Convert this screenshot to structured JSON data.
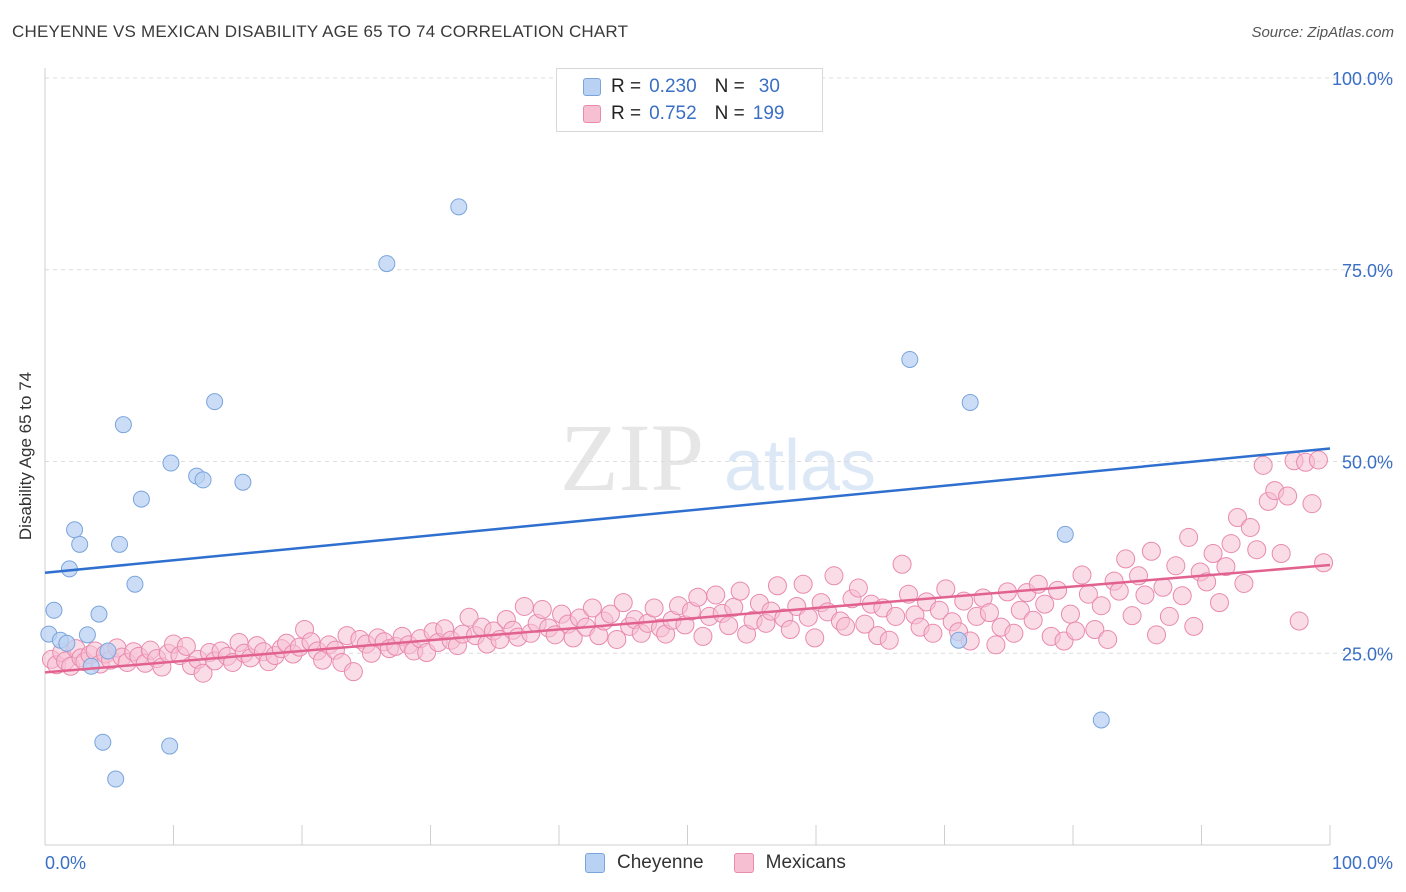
{
  "header": {
    "title": "CHEYENNE VS MEXICAN DISABILITY AGE 65 TO 74 CORRELATION CHART",
    "source": "Source: ZipAtlas.com"
  },
  "watermark": {
    "zip": "ZIP",
    "atlas": "atlas"
  },
  "legend_top": {
    "rows": [
      {
        "r_label": "R =",
        "r_value": "0.230",
        "n_label": "N =",
        "n_value": "30"
      },
      {
        "r_label": "R =",
        "r_value": "0.752",
        "n_label": "N =",
        "n_value": "199"
      }
    ]
  },
  "legend_bottom": {
    "items": [
      "Cheyenne",
      "Mexicans"
    ]
  },
  "colors": {
    "cheyenne_fill": "#b9d2f3",
    "cheyenne_stroke": "#7aa4dc",
    "cheyenne_line": "#2f6fcf",
    "mexicans_fill": "#f6bfd2",
    "mexicans_stroke": "#e98aae",
    "mexicans_line": "#e2628f",
    "tick_label": "#3a6fc4",
    "grid": "#dcdcdc"
  },
  "chart_data": {
    "type": "scatter",
    "title": "CHEYENNE VS MEXICAN DISABILITY AGE 65 TO 74 CORRELATION CHART",
    "xlabel": "",
    "ylabel": "Disability Age 65 to 74",
    "xlim": [
      0,
      100
    ],
    "ylim": [
      0,
      100
    ],
    "x_tick_labels": [
      "0.0%",
      "100.0%"
    ],
    "y_tick_labels": [
      "25.0%",
      "50.0%",
      "75.0%",
      "100.0%"
    ],
    "y_ticks": [
      25,
      50,
      75,
      100
    ],
    "grid": true,
    "legend_position": "top-center",
    "series": [
      {
        "name": "Cheyenne",
        "r": 0.23,
        "n": 30,
        "trend": {
          "x": [
            0,
            100
          ],
          "y": [
            35.5,
            51.7
          ]
        },
        "points": [
          [
            0.3,
            27.5
          ],
          [
            0.7,
            30.6
          ],
          [
            1.2,
            26.7
          ],
          [
            1.7,
            26.3
          ],
          [
            1.9,
            36.0
          ],
          [
            2.3,
            41.1
          ],
          [
            2.7,
            39.2
          ],
          [
            3.3,
            27.4
          ],
          [
            3.6,
            23.3
          ],
          [
            4.2,
            30.1
          ],
          [
            4.5,
            13.4
          ],
          [
            5.5,
            8.6
          ],
          [
            5.8,
            39.2
          ],
          [
            6.1,
            54.8
          ],
          [
            7.0,
            34.0
          ],
          [
            7.5,
            45.1
          ],
          [
            9.7,
            12.9
          ],
          [
            9.8,
            49.8
          ],
          [
            11.8,
            48.1
          ],
          [
            12.3,
            47.6
          ],
          [
            13.2,
            57.8
          ],
          [
            15.4,
            47.3
          ],
          [
            26.6,
            75.8
          ],
          [
            32.2,
            83.2
          ],
          [
            67.3,
            63.3
          ],
          [
            71.1,
            26.7
          ],
          [
            72.0,
            57.7
          ],
          [
            79.4,
            40.5
          ],
          [
            82.2,
            16.3
          ],
          [
            4.9,
            25.3
          ]
        ]
      },
      {
        "name": "Mexicans",
        "r": 0.752,
        "n": 199,
        "trend": {
          "x": [
            0,
            100
          ],
          "y": [
            22.5,
            36.5
          ]
        },
        "points": [
          [
            0.5,
            24.2
          ],
          [
            0.9,
            23.5
          ],
          [
            1.3,
            25.1
          ],
          [
            1.6,
            24.0
          ],
          [
            2.0,
            23.3
          ],
          [
            2.4,
            25.6
          ],
          [
            2.8,
            24.4
          ],
          [
            3.1,
            23.9
          ],
          [
            3.5,
            24.8
          ],
          [
            3.9,
            25.3
          ],
          [
            4.3,
            23.6
          ],
          [
            4.7,
            24.9
          ],
          [
            5.1,
            24.1
          ],
          [
            5.6,
            25.7
          ],
          [
            6.0,
            24.5
          ],
          [
            6.4,
            23.8
          ],
          [
            6.9,
            25.2
          ],
          [
            7.3,
            24.6
          ],
          [
            7.8,
            23.7
          ],
          [
            8.2,
            25.4
          ],
          [
            8.7,
            24.3
          ],
          [
            9.1,
            23.2
          ],
          [
            9.6,
            25.0
          ],
          [
            10.0,
            26.2
          ],
          [
            10.5,
            24.7
          ],
          [
            11.0,
            25.9
          ],
          [
            11.4,
            23.4
          ],
          [
            11.9,
            24.2
          ],
          [
            12.3,
            22.4
          ],
          [
            12.8,
            25.1
          ],
          [
            13.2,
            24.0
          ],
          [
            13.7,
            25.3
          ],
          [
            14.2,
            24.6
          ],
          [
            14.6,
            23.8
          ],
          [
            15.1,
            26.4
          ],
          [
            15.5,
            25.0
          ],
          [
            16.0,
            24.4
          ],
          [
            16.5,
            26.0
          ],
          [
            17.0,
            25.2
          ],
          [
            17.4,
            23.9
          ],
          [
            17.9,
            24.7
          ],
          [
            18.4,
            25.6
          ],
          [
            18.8,
            26.3
          ],
          [
            19.3,
            24.9
          ],
          [
            19.8,
            25.8
          ],
          [
            20.2,
            28.1
          ],
          [
            20.7,
            26.5
          ],
          [
            21.2,
            25.3
          ],
          [
            21.6,
            24.1
          ],
          [
            22.1,
            26.1
          ],
          [
            22.6,
            25.4
          ],
          [
            23.1,
            23.8
          ],
          [
            23.5,
            27.3
          ],
          [
            24.0,
            22.6
          ],
          [
            24.5,
            26.8
          ],
          [
            25.0,
            26.2
          ],
          [
            25.4,
            25.0
          ],
          [
            25.9,
            27.0
          ],
          [
            26.4,
            26.5
          ],
          [
            26.8,
            25.6
          ],
          [
            27.3,
            25.9
          ],
          [
            27.8,
            27.2
          ],
          [
            28.3,
            26.1
          ],
          [
            28.7,
            25.3
          ],
          [
            29.2,
            26.9
          ],
          [
            29.7,
            25.1
          ],
          [
            30.2,
            27.8
          ],
          [
            30.6,
            26.4
          ],
          [
            31.1,
            28.2
          ],
          [
            31.6,
            26.7
          ],
          [
            32.1,
            26.0
          ],
          [
            32.5,
            27.5
          ],
          [
            33.0,
            29.7
          ],
          [
            33.5,
            27.3
          ],
          [
            34.0,
            28.4
          ],
          [
            34.4,
            26.2
          ],
          [
            34.9,
            27.9
          ],
          [
            35.4,
            26.8
          ],
          [
            35.9,
            29.4
          ],
          [
            36.4,
            28.0
          ],
          [
            36.8,
            27.1
          ],
          [
            37.3,
            31.1
          ],
          [
            37.8,
            27.6
          ],
          [
            38.3,
            28.9
          ],
          [
            38.7,
            30.7
          ],
          [
            39.2,
            28.3
          ],
          [
            39.7,
            27.4
          ],
          [
            40.2,
            30.1
          ],
          [
            40.7,
            28.8
          ],
          [
            41.1,
            27.0
          ],
          [
            41.6,
            29.6
          ],
          [
            42.1,
            28.4
          ],
          [
            42.6,
            30.9
          ],
          [
            43.1,
            27.3
          ],
          [
            43.5,
            29.2
          ],
          [
            44.0,
            30.1
          ],
          [
            44.5,
            26.8
          ],
          [
            45.0,
            31.6
          ],
          [
            45.5,
            28.5
          ],
          [
            45.9,
            29.4
          ],
          [
            46.4,
            27.6
          ],
          [
            46.9,
            28.9
          ],
          [
            47.4,
            30.9
          ],
          [
            47.9,
            28.3
          ],
          [
            48.3,
            27.5
          ],
          [
            48.8,
            29.3
          ],
          [
            49.3,
            31.2
          ],
          [
            49.8,
            28.7
          ],
          [
            50.3,
            30.5
          ],
          [
            50.8,
            32.3
          ],
          [
            51.2,
            27.2
          ],
          [
            51.7,
            29.8
          ],
          [
            52.2,
            32.6
          ],
          [
            52.7,
            30.2
          ],
          [
            53.2,
            28.6
          ],
          [
            53.6,
            31.0
          ],
          [
            54.1,
            33.1
          ],
          [
            54.6,
            27.5
          ],
          [
            55.1,
            29.3
          ],
          [
            55.6,
            31.5
          ],
          [
            56.1,
            28.9
          ],
          [
            56.5,
            30.5
          ],
          [
            57.0,
            33.8
          ],
          [
            57.5,
            29.6
          ],
          [
            58.0,
            28.1
          ],
          [
            58.5,
            31.1
          ],
          [
            59.0,
            34.0
          ],
          [
            59.4,
            29.7
          ],
          [
            59.9,
            27.0
          ],
          [
            60.4,
            31.6
          ],
          [
            60.9,
            30.4
          ],
          [
            61.4,
            35.1
          ],
          [
            61.9,
            29.2
          ],
          [
            62.3,
            28.5
          ],
          [
            62.8,
            32.1
          ],
          [
            63.3,
            33.5
          ],
          [
            63.8,
            28.8
          ],
          [
            64.3,
            31.4
          ],
          [
            64.8,
            27.3
          ],
          [
            65.2,
            30.9
          ],
          [
            65.7,
            26.7
          ],
          [
            66.2,
            29.8
          ],
          [
            66.7,
            36.6
          ],
          [
            67.2,
            32.7
          ],
          [
            67.7,
            30.0
          ],
          [
            68.1,
            28.4
          ],
          [
            68.6,
            31.7
          ],
          [
            69.1,
            27.6
          ],
          [
            69.6,
            30.6
          ],
          [
            70.1,
            33.4
          ],
          [
            70.6,
            29.1
          ],
          [
            71.1,
            27.8
          ],
          [
            71.5,
            31.8
          ],
          [
            72.0,
            26.6
          ],
          [
            72.5,
            29.8
          ],
          [
            73.0,
            32.2
          ],
          [
            73.5,
            30.3
          ],
          [
            74.0,
            26.1
          ],
          [
            74.4,
            28.4
          ],
          [
            74.9,
            33.0
          ],
          [
            75.4,
            27.6
          ],
          [
            75.9,
            30.6
          ],
          [
            76.4,
            32.9
          ],
          [
            76.9,
            29.3
          ],
          [
            77.3,
            34.0
          ],
          [
            77.8,
            31.4
          ],
          [
            78.3,
            27.2
          ],
          [
            78.8,
            33.2
          ],
          [
            79.3,
            26.6
          ],
          [
            79.8,
            30.1
          ],
          [
            80.2,
            27.9
          ],
          [
            80.7,
            35.2
          ],
          [
            81.2,
            32.7
          ],
          [
            81.7,
            28.1
          ],
          [
            82.2,
            31.2
          ],
          [
            82.7,
            26.8
          ],
          [
            83.2,
            34.4
          ],
          [
            83.6,
            33.1
          ],
          [
            84.1,
            37.3
          ],
          [
            84.6,
            29.9
          ],
          [
            85.1,
            35.1
          ],
          [
            85.6,
            32.6
          ],
          [
            86.1,
            38.3
          ],
          [
            86.5,
            27.4
          ],
          [
            87.0,
            33.6
          ],
          [
            87.5,
            29.8
          ],
          [
            88.0,
            36.4
          ],
          [
            88.5,
            32.5
          ],
          [
            89.0,
            40.1
          ],
          [
            89.4,
            28.5
          ],
          [
            89.9,
            35.6
          ],
          [
            90.4,
            34.3
          ],
          [
            90.9,
            38.0
          ],
          [
            91.4,
            31.6
          ],
          [
            91.9,
            36.3
          ],
          [
            92.3,
            39.3
          ],
          [
            92.8,
            42.7
          ],
          [
            93.3,
            34.1
          ],
          [
            93.8,
            41.4
          ],
          [
            94.3,
            38.5
          ],
          [
            94.8,
            49.5
          ],
          [
            95.2,
            44.8
          ],
          [
            95.7,
            46.2
          ],
          [
            96.2,
            38.0
          ],
          [
            96.7,
            45.5
          ],
          [
            97.2,
            50.1
          ],
          [
            97.6,
            29.2
          ],
          [
            98.1,
            49.9
          ],
          [
            98.6,
            44.5
          ],
          [
            99.1,
            50.2
          ],
          [
            99.5,
            36.8
          ]
        ]
      }
    ]
  }
}
